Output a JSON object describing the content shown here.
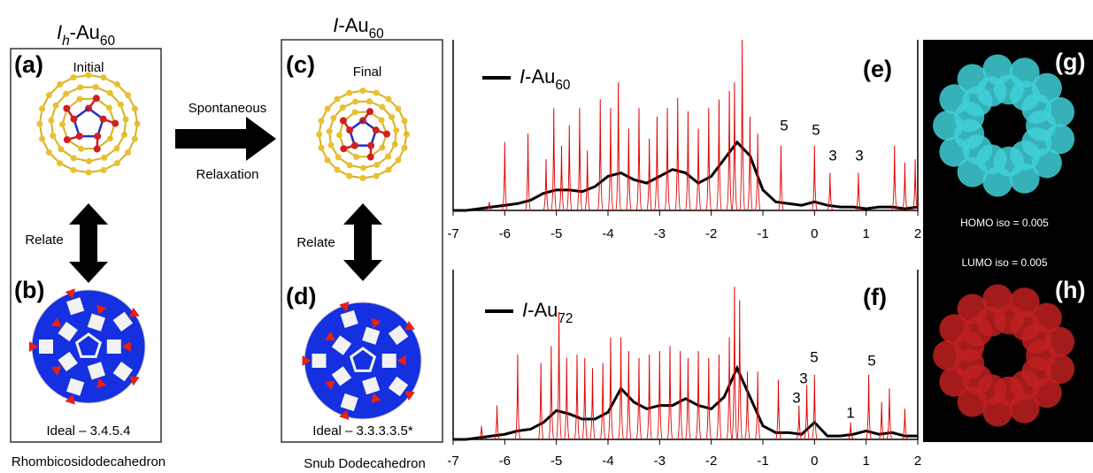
{
  "left_title": "Ih-Au60",
  "mid_title": "I-Au60",
  "panels": {
    "a": {
      "label": "(a)",
      "caption": "Initial"
    },
    "b": {
      "label": "(b)",
      "caption": "Ideal – 3.4.5.4"
    },
    "c": {
      "label": "(c)",
      "caption": "Final"
    },
    "d": {
      "label": "(d)",
      "caption": "Ideal – 3.3.3.3.5*"
    },
    "g": {
      "label": "(g)",
      "caption": "HOMO iso = 0.005"
    },
    "h": {
      "label": "(h)",
      "caption": "LUMO iso = 0.005"
    }
  },
  "relate_left": "Relate",
  "relate_mid": "Relate",
  "arrow": {
    "top": "Spontaneous",
    "bottom": "Relaxation"
  },
  "left_name": "Rhombicosidodecahedron",
  "mid_name": "Snub Dodecahedron",
  "chart_data": [
    {
      "type": "line",
      "label": "(e)",
      "xlim": [
        -7,
        2
      ],
      "xticks": [
        -7,
        -6,
        -5,
        -4,
        -3,
        -2,
        -1,
        0,
        1,
        2
      ],
      "ylim": [
        0,
        1
      ],
      "annotations": [
        "5",
        "5",
        "3",
        "3"
      ],
      "series": [
        {
          "name": "I-Au60",
          "color": "#000000",
          "x": [
            -7,
            -6.75,
            -6.5,
            -6.25,
            -6,
            -5.75,
            -5.5,
            -5.25,
            -5,
            -4.75,
            -4.5,
            -4.25,
            -4,
            -3.75,
            -3.5,
            -3.25,
            -3,
            -2.75,
            -2.5,
            -2.25,
            -2,
            -1.75,
            -1.5,
            -1.25,
            -1,
            -0.75,
            -0.5,
            -0.25,
            0,
            0.25,
            0.5,
            0.75,
            1,
            1.25,
            1.5,
            1.75,
            2
          ],
          "values": [
            0,
            0,
            0.01,
            0.02,
            0.03,
            0.04,
            0.06,
            0.1,
            0.12,
            0.12,
            0.11,
            0.14,
            0.2,
            0.22,
            0.18,
            0.16,
            0.2,
            0.24,
            0.22,
            0.16,
            0.2,
            0.3,
            0.4,
            0.32,
            0.12,
            0.05,
            0.04,
            0.03,
            0.05,
            0.03,
            0.02,
            0.02,
            0.01,
            0.02,
            0.02,
            0.01,
            0.02
          ]
        },
        {
          "color": "#e00000",
          "x": [
            -6.3,
            -6.0,
            -5.55,
            -5.2,
            -5.05,
            -4.9,
            -4.75,
            -4.55,
            -4.4,
            -4.15,
            -3.95,
            -3.8,
            -3.6,
            -3.4,
            -3.2,
            -3.05,
            -2.85,
            -2.65,
            -2.45,
            -2.25,
            -2.05,
            -1.85,
            -1.65,
            -1.55,
            -1.4,
            -1.25,
            -1.1,
            -0.65,
            0,
            0.3,
            0.85,
            1.55,
            1.75,
            1.95
          ],
          "values": [
            0.05,
            0.4,
            0.45,
            0.3,
            0.6,
            0.38,
            0.5,
            0.6,
            0.35,
            0.65,
            0.6,
            0.75,
            0.48,
            0.6,
            0.42,
            0.55,
            0.6,
            0.66,
            0.58,
            0.48,
            0.6,
            0.65,
            0.7,
            0.75,
            1.0,
            0.55,
            0.45,
            0.38,
            0.38,
            0.22,
            0.22,
            0.38,
            0.28,
            0.3
          ]
        }
      ]
    },
    {
      "type": "line",
      "label": "(f)",
      "xlim": [
        -7,
        2
      ],
      "xticks": [
        -7,
        -6,
        -5,
        -4,
        -3,
        -2,
        -1,
        0,
        1,
        2
      ],
      "ylim": [
        0,
        1
      ],
      "annotations": [
        "5",
        "3",
        "3",
        "1",
        "5"
      ],
      "series": [
        {
          "name": "I-Au72",
          "color": "#000000",
          "x": [
            -7,
            -6.75,
            -6.5,
            -6.25,
            -6,
            -5.75,
            -5.5,
            -5.25,
            -5,
            -4.75,
            -4.5,
            -4.25,
            -4,
            -3.75,
            -3.5,
            -3.25,
            -3,
            -2.75,
            -2.5,
            -2.25,
            -2,
            -1.75,
            -1.5,
            -1.25,
            -1,
            -0.75,
            -0.5,
            -0.25,
            0,
            0.25,
            0.5,
            0.75,
            1,
            1.25,
            1.5,
            1.75,
            2
          ],
          "values": [
            0,
            0,
            0.01,
            0.02,
            0.03,
            0.05,
            0.06,
            0.1,
            0.17,
            0.15,
            0.12,
            0.12,
            0.16,
            0.3,
            0.22,
            0.18,
            0.2,
            0.2,
            0.24,
            0.2,
            0.18,
            0.25,
            0.42,
            0.25,
            0.08,
            0.04,
            0.04,
            0.03,
            0.1,
            0.02,
            0.02,
            0.03,
            0.05,
            0.03,
            0.04,
            0.02,
            0.02
          ]
        },
        {
          "color": "#e00000",
          "x": [
            -6.45,
            -6.15,
            -5.75,
            -5.3,
            -5.1,
            -4.95,
            -4.8,
            -4.6,
            -4.45,
            -4.3,
            -4.1,
            -3.95,
            -3.75,
            -3.6,
            -3.4,
            -3.2,
            -3.0,
            -2.8,
            -2.6,
            -2.45,
            -2.25,
            -2.05,
            -1.85,
            -1.65,
            -1.55,
            -1.45,
            -1.3,
            -1.1,
            -0.7,
            -0.3,
            -0.15,
            0,
            0.7,
            1.05,
            1.3,
            1.45,
            1.75
          ],
          "values": [
            0.08,
            0.2,
            0.5,
            0.45,
            0.55,
            0.75,
            0.48,
            0.5,
            0.48,
            0.42,
            0.45,
            0.6,
            0.6,
            0.52,
            0.48,
            0.5,
            0.52,
            0.55,
            0.52,
            0.48,
            0.52,
            0.48,
            0.5,
            0.6,
            0.9,
            0.82,
            0.4,
            0.4,
            0.35,
            0.2,
            0.32,
            0.38,
            0.1,
            0.38,
            0.22,
            0.3,
            0.18
          ]
        }
      ]
    }
  ]
}
